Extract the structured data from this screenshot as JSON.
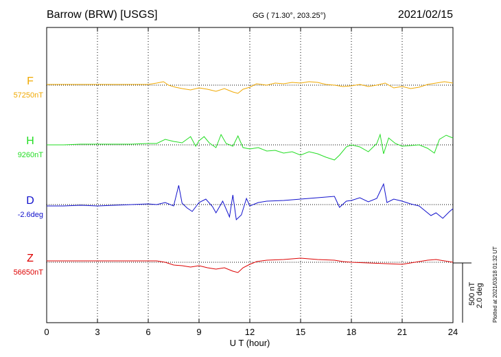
{
  "header": {
    "station": "Barrow (BRW)  [USGS]",
    "coords": "GG ( 71.30°, 203.25°)",
    "date": "2021/02/15"
  },
  "footer": {
    "plotted": "Plotted at 2021/03/18 01:32 UT"
  },
  "chart_data": {
    "type": "line",
    "title": "Barrow (BRW)  [USGS]",
    "xlabel": "U T (hour)",
    "xlim": [
      0,
      24
    ],
    "xticks": [
      0,
      3,
      6,
      9,
      12,
      15,
      18,
      21,
      24
    ],
    "grid": true,
    "scale": {
      "nT": "500 nT",
      "deg": "2.0 deg"
    },
    "series": [
      {
        "name": "F",
        "baseline_label": "57250nT",
        "color": "#f0a800",
        "points": [
          [
            0,
            1
          ],
          [
            1,
            1
          ],
          [
            2,
            1
          ],
          [
            3,
            1
          ],
          [
            4,
            1
          ],
          [
            5,
            1
          ],
          [
            6,
            1
          ],
          [
            6.5,
            3
          ],
          [
            6.9,
            5
          ],
          [
            7.2,
            0
          ],
          [
            7.6,
            -3
          ],
          [
            8,
            -5
          ],
          [
            8.5,
            -7
          ],
          [
            9,
            -4
          ],
          [
            9.5,
            -6
          ],
          [
            10,
            -9
          ],
          [
            10.5,
            -5
          ],
          [
            11,
            -10
          ],
          [
            11.3,
            -12
          ],
          [
            11.6,
            -6
          ],
          [
            12,
            -3
          ],
          [
            12.4,
            2
          ],
          [
            13,
            0
          ],
          [
            13.5,
            3
          ],
          [
            14,
            2
          ],
          [
            14.5,
            4
          ],
          [
            15,
            3
          ],
          [
            15.5,
            5
          ],
          [
            16,
            4
          ],
          [
            16.5,
            1
          ],
          [
            17,
            0
          ],
          [
            17.5,
            -2
          ],
          [
            18,
            -1
          ],
          [
            18.5,
            1
          ],
          [
            19,
            -2
          ],
          [
            19.5,
            0
          ],
          [
            20,
            3
          ],
          [
            20.5,
            -4
          ],
          [
            21,
            -2
          ],
          [
            21.5,
            -5
          ],
          [
            22,
            -3
          ],
          [
            22.5,
            1
          ],
          [
            23,
            3
          ],
          [
            23.5,
            5
          ],
          [
            24,
            3
          ]
        ]
      },
      {
        "name": "H",
        "baseline_label": "9260nT",
        "color": "#22dd22",
        "points": [
          [
            0,
            0
          ],
          [
            1,
            0
          ],
          [
            2,
            1
          ],
          [
            3,
            1
          ],
          [
            4,
            1
          ],
          [
            5,
            1
          ],
          [
            6,
            2
          ],
          [
            6.5,
            2
          ],
          [
            7,
            8
          ],
          [
            7.5,
            5
          ],
          [
            8,
            3
          ],
          [
            8.5,
            12
          ],
          [
            8.8,
            -2
          ],
          [
            9,
            6
          ],
          [
            9.3,
            12
          ],
          [
            9.6,
            3
          ],
          [
            10,
            -4
          ],
          [
            10.3,
            15
          ],
          [
            10.6,
            2
          ],
          [
            11,
            -2
          ],
          [
            11.3,
            13
          ],
          [
            11.6,
            -4
          ],
          [
            12,
            -6
          ],
          [
            12.5,
            -4
          ],
          [
            13,
            -9
          ],
          [
            13.5,
            -8
          ],
          [
            14,
            -12
          ],
          [
            14.5,
            -10
          ],
          [
            15,
            -15
          ],
          [
            15.5,
            -10
          ],
          [
            16,
            -13
          ],
          [
            16.5,
            -18
          ],
          [
            17,
            -22
          ],
          [
            17.3,
            -15
          ],
          [
            17.7,
            -3
          ],
          [
            18,
            0
          ],
          [
            18.5,
            -3
          ],
          [
            19,
            -10
          ],
          [
            19.5,
            2
          ],
          [
            19.7,
            15
          ],
          [
            19.9,
            -13
          ],
          [
            20.2,
            10
          ],
          [
            20.6,
            2
          ],
          [
            21,
            -2
          ],
          [
            21.5,
            -1
          ],
          [
            22,
            0
          ],
          [
            22.5,
            -5
          ],
          [
            22.9,
            -12
          ],
          [
            23.2,
            8
          ],
          [
            23.6,
            14
          ],
          [
            24,
            10
          ]
        ]
      },
      {
        "name": "D",
        "baseline_label": "-2.6deg",
        "color": "#1010cc",
        "points": [
          [
            0,
            -2
          ],
          [
            1,
            -2
          ],
          [
            2,
            -1
          ],
          [
            3,
            -2
          ],
          [
            4,
            -1
          ],
          [
            5,
            0
          ],
          [
            6,
            1
          ],
          [
            6.5,
            0
          ],
          [
            7,
            3
          ],
          [
            7.5,
            -2
          ],
          [
            7.8,
            28
          ],
          [
            8,
            2
          ],
          [
            8.3,
            -5
          ],
          [
            8.6,
            -10
          ],
          [
            9,
            3
          ],
          [
            9.4,
            8
          ],
          [
            9.8,
            -3
          ],
          [
            10,
            -12
          ],
          [
            10.4,
            5
          ],
          [
            10.8,
            -18
          ],
          [
            11,
            14
          ],
          [
            11.2,
            -22
          ],
          [
            11.5,
            -15
          ],
          [
            11.8,
            9
          ],
          [
            12,
            -2
          ],
          [
            12.5,
            3
          ],
          [
            13,
            5
          ],
          [
            14,
            6
          ],
          [
            15,
            8
          ],
          [
            16,
            10
          ],
          [
            17,
            12
          ],
          [
            17.3,
            -4
          ],
          [
            17.7,
            5
          ],
          [
            18,
            6
          ],
          [
            18.5,
            10
          ],
          [
            19,
            4
          ],
          [
            19.5,
            9
          ],
          [
            19.9,
            30
          ],
          [
            20.1,
            3
          ],
          [
            20.5,
            8
          ],
          [
            21,
            5
          ],
          [
            21.5,
            1
          ],
          [
            22,
            -2
          ],
          [
            22.3,
            -8
          ],
          [
            22.7,
            -16
          ],
          [
            23,
            -12
          ],
          [
            23.4,
            -20
          ],
          [
            23.8,
            -10
          ],
          [
            24,
            -6
          ]
        ]
      },
      {
        "name": "Z",
        "baseline_label": "56650nT",
        "color": "#dd0000",
        "points": [
          [
            0,
            2
          ],
          [
            1,
            2
          ],
          [
            2,
            2
          ],
          [
            3,
            2
          ],
          [
            4,
            2
          ],
          [
            5,
            2
          ],
          [
            6,
            2
          ],
          [
            6.5,
            2
          ],
          [
            7,
            0
          ],
          [
            7.5,
            -4
          ],
          [
            8,
            -5
          ],
          [
            8.5,
            -7
          ],
          [
            9,
            -5
          ],
          [
            9.5,
            -8
          ],
          [
            10,
            -10
          ],
          [
            10.5,
            -8
          ],
          [
            11,
            -13
          ],
          [
            11.3,
            -15
          ],
          [
            11.6,
            -8
          ],
          [
            12,
            -3
          ],
          [
            12.4,
            1
          ],
          [
            13,
            3
          ],
          [
            14,
            4
          ],
          [
            15,
            6
          ],
          [
            15.5,
            5
          ],
          [
            16,
            4
          ],
          [
            17,
            3
          ],
          [
            17.5,
            1
          ],
          [
            18,
            0
          ],
          [
            19,
            -1
          ],
          [
            20,
            -2
          ],
          [
            21,
            -3
          ],
          [
            21.5,
            -1
          ],
          [
            22,
            1
          ],
          [
            22.5,
            3
          ],
          [
            23,
            4
          ],
          [
            23.5,
            2
          ],
          [
            24,
            0
          ]
        ]
      }
    ]
  }
}
